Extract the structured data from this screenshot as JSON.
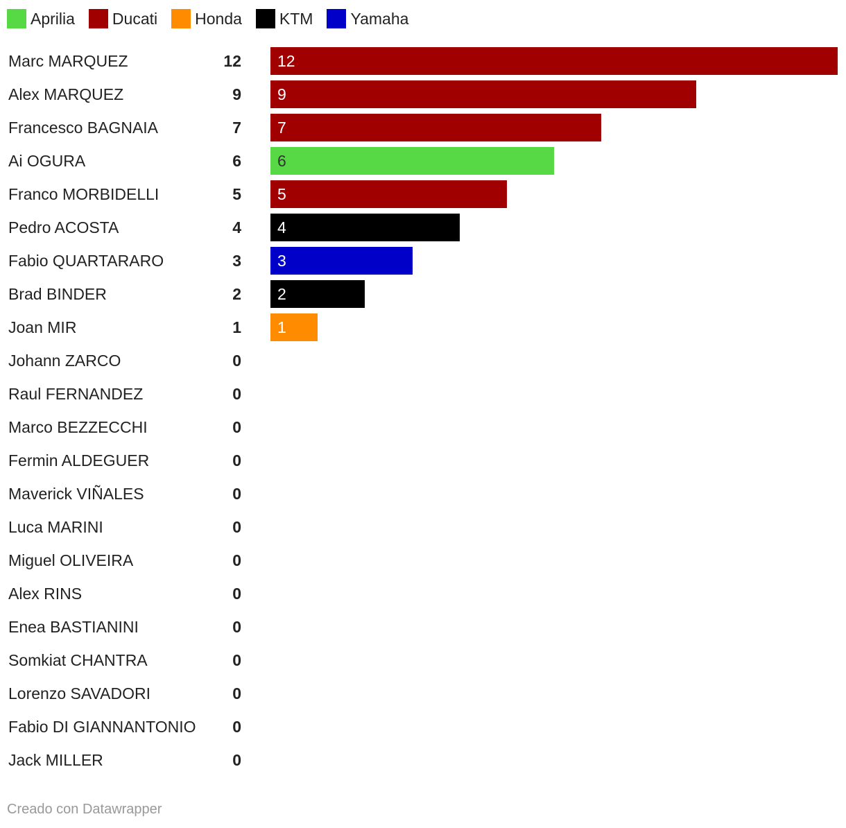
{
  "legend": [
    {
      "name": "Aprilia",
      "color": "#56d945"
    },
    {
      "name": "Ducati",
      "color": "#a00000"
    },
    {
      "name": "Honda",
      "color": "#ff8c00"
    },
    {
      "name": "KTM",
      "color": "#000000"
    },
    {
      "name": "Yamaha",
      "color": "#0000c8"
    }
  ],
  "chart_data": {
    "type": "bar",
    "orientation": "horizontal",
    "xlim": [
      0,
      12
    ],
    "categories": [
      "Marc MARQUEZ",
      "Alex MARQUEZ",
      "Francesco BAGNAIA",
      "Ai OGURA",
      "Franco MORBIDELLI",
      "Pedro ACOSTA",
      "Fabio QUARTARARO",
      "Brad BINDER",
      "Joan MIR",
      "Johann ZARCO",
      "Raul FERNANDEZ",
      "Marco BEZZECCHI",
      "Fermin ALDEGUER",
      "Maverick VIÑALES",
      "Luca MARINI",
      "Miguel OLIVEIRA",
      "Alex RINS",
      "Enea BASTIANINI",
      "Somkiat CHANTRA",
      "Lorenzo SAVADORI",
      "Fabio DI GIANNANTONIO",
      "Jack MILLER"
    ],
    "values": [
      12,
      9,
      7,
      6,
      5,
      4,
      3,
      2,
      1,
      0,
      0,
      0,
      0,
      0,
      0,
      0,
      0,
      0,
      0,
      0,
      0,
      0
    ],
    "manufacturers": [
      "Ducati",
      "Ducati",
      "Ducati",
      "Aprilia",
      "Ducati",
      "KTM",
      "Yamaha",
      "KTM",
      "Honda",
      "",
      "",
      "",
      "",
      "",
      "",
      "",
      "",
      "",
      "",
      "",
      "",
      ""
    ],
    "legend_position": "top-left",
    "grid": false
  },
  "footer": {
    "credit": "Creado con Datawrapper"
  }
}
